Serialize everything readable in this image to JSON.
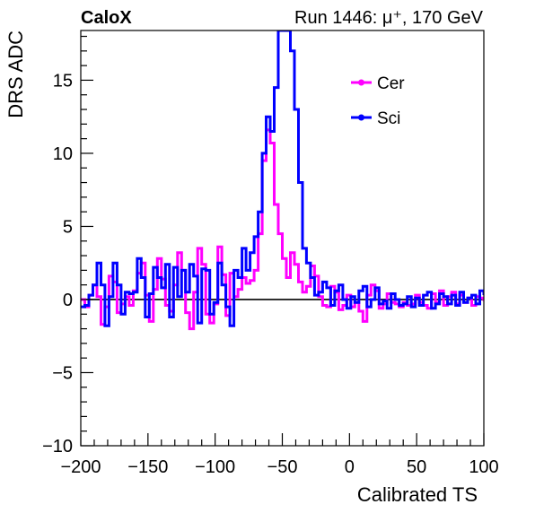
{
  "header": {
    "left_label": "CaloX",
    "right_label": "Run 1446:   μ⁺, 170 GeV"
  },
  "colors": {
    "cer": "#ff00ff",
    "sci": "#0000ff",
    "zero_line": "#000000"
  },
  "chart_data": {
    "type": "line",
    "xlabel": "Calibrated TS",
    "ylabel": "DRS ADC",
    "xlim": [
      -200,
      100
    ],
    "ylim": [
      -10,
      18.4
    ],
    "xticks": [
      -200,
      -150,
      -100,
      -50,
      0,
      50,
      100
    ],
    "yticks": [
      -10,
      -5,
      0,
      5,
      10,
      15
    ],
    "tick_labels": {
      "x": [
        "−200",
        "−150",
        "−100",
        "−50",
        "0",
        "50",
        "100"
      ],
      "y": [
        "−10",
        "−5",
        "0",
        "5",
        "10",
        "15"
      ]
    },
    "zero_line": 0,
    "step": true,
    "legend_position": "top-right",
    "series": [
      {
        "name": "Cer",
        "color": "#ff00ff",
        "x": [
          -200,
          -197,
          -194,
          -191,
          -188,
          -185,
          -182,
          -179,
          -176,
          -173,
          -170,
          -167,
          -164,
          -161,
          -158,
          -155,
          -152,
          -149,
          -146,
          -143,
          -140,
          -137,
          -134,
          -131,
          -128,
          -125,
          -122,
          -119,
          -116,
          -113,
          -110,
          -107,
          -104,
          -101,
          -98,
          -95,
          -92,
          -89,
          -86,
          -83,
          -80,
          -77,
          -74,
          -71,
          -68,
          -65,
          -62,
          -59,
          -56,
          -53,
          -50,
          -47,
          -44,
          -41,
          -38,
          -35,
          -32,
          -29,
          -26,
          -23,
          -20,
          -17,
          -14,
          -11,
          -8,
          -5,
          -2,
          1,
          4,
          7,
          10,
          13,
          16,
          19,
          22,
          25,
          28,
          31,
          34,
          37,
          40,
          43,
          46,
          49,
          52,
          55,
          58,
          61,
          64,
          67,
          70,
          73,
          76,
          79,
          82,
          85,
          88,
          91,
          94,
          97,
          100
        ],
        "y": [
          0,
          -0.5,
          0.3,
          1.0,
          0.2,
          -1.7,
          -0.5,
          1.6,
          1.2,
          -0.9,
          -0.3,
          0.2,
          -0.4,
          0.6,
          1.8,
          2.5,
          0.3,
          -1.5,
          0.7,
          2.8,
          1.4,
          -0.4,
          -0.8,
          1.0,
          3.2,
          2.0,
          -0.9,
          -2.0,
          0.5,
          3.5,
          2.4,
          -1.0,
          -1.6,
          -0.3,
          3.6,
          1.7,
          -1.1,
          1.8,
          0.2,
          0.7,
          1.5,
          1.1,
          1.3,
          2.0,
          4.5,
          9.5,
          11.6,
          10.7,
          6.5,
          4.5,
          2.8,
          1.5,
          3.2,
          2.4,
          1.2,
          0.5,
          0.9,
          2.3,
          1.6,
          0.2,
          -0.4,
          -0.5,
          0.9,
          0.5,
          -0.7,
          -0.4,
          0.3,
          -0.5,
          -0.2,
          -0.8,
          -1.5,
          0.3,
          1.0,
          0.6,
          -0.6,
          -0.3,
          0.4,
          -0.2,
          -0.3,
          -0.5,
          -0.2,
          -0.4,
          -0.3,
          0.3,
          -0.2,
          -0.4,
          -0.6,
          0.4,
          -0.2,
          0.6,
          -0.4,
          0.2,
          0.5,
          -0.3,
          0.3,
          -0.2,
          0.1,
          -0.4,
          0.2,
          0.1,
          -0.1
        ]
      },
      {
        "name": "Sci",
        "color": "#0000ff",
        "x": [
          -200,
          -197,
          -194,
          -191,
          -188,
          -185,
          -182,
          -179,
          -176,
          -173,
          -170,
          -167,
          -164,
          -161,
          -158,
          -155,
          -152,
          -149,
          -146,
          -143,
          -140,
          -137,
          -134,
          -131,
          -128,
          -125,
          -122,
          -119,
          -116,
          -113,
          -110,
          -107,
          -104,
          -101,
          -98,
          -95,
          -92,
          -89,
          -86,
          -83,
          -80,
          -77,
          -74,
          -71,
          -68,
          -65,
          -62,
          -59,
          -56,
          -53,
          -50,
          -47,
          -44,
          -41,
          -38,
          -35,
          -32,
          -29,
          -26,
          -23,
          -20,
          -17,
          -14,
          -11,
          -8,
          -5,
          -2,
          1,
          4,
          7,
          10,
          13,
          16,
          19,
          22,
          25,
          28,
          31,
          34,
          37,
          40,
          43,
          46,
          49,
          52,
          55,
          58,
          61,
          64,
          67,
          70,
          73,
          76,
          79,
          82,
          85,
          88,
          91,
          94,
          97,
          100
        ],
        "y": [
          -0.5,
          -0.4,
          0.3,
          1.0,
          2.5,
          1.0,
          -1.8,
          0.2,
          2.5,
          1.0,
          -1.0,
          0.5,
          0.4,
          0.5,
          2.8,
          1.5,
          -1.2,
          0.4,
          2.2,
          1.5,
          0.8,
          2.4,
          -1.2,
          2.2,
          0.2,
          2.0,
          0.5,
          2.4,
          1.6,
          -1.6,
          2.1,
          2.0,
          -1.0,
          -0.2,
          2.5,
          1.0,
          -0.5,
          -1.8,
          2.0,
          1.5,
          3.5,
          2.0,
          3.2,
          4.3,
          6.0,
          10.0,
          12.5,
          11.5,
          14.5,
          18.4,
          18.4,
          18.4,
          17.0,
          13.0,
          8.0,
          3.5,
          2.5,
          1.5,
          0.3,
          0.5,
          1.2,
          0.8,
          -0.4,
          0.6,
          1.0,
          0.0,
          -0.6,
          0.2,
          -0.2,
          0.6,
          0.9,
          -0.5,
          0.0,
          0.8,
          -0.3,
          -0.1,
          -0.6,
          0.4,
          0.0,
          -0.4,
          -0.3,
          0.2,
          -0.5,
          0.1,
          -0.4,
          0.3,
          0.5,
          -0.6,
          -0.3,
          0.4,
          0.2,
          -0.3,
          0.3,
          -0.4,
          0.5,
          -0.2,
          0.1,
          0.3,
          -0.3,
          0.6,
          0.3
        ]
      }
    ]
  }
}
